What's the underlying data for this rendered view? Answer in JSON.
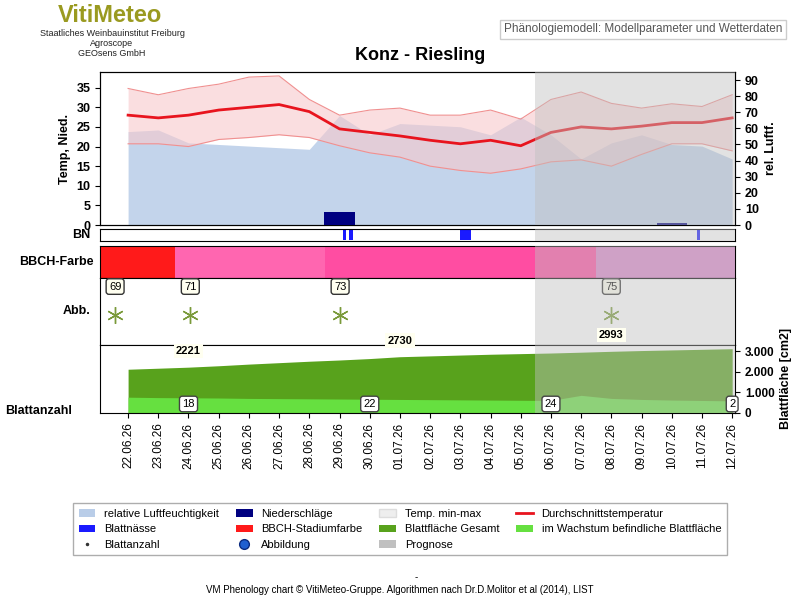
{
  "header": {
    "logo": "VitiMeteo",
    "lines": [
      "Staatliches Weinbauinstitut Freiburg",
      "Agroscope",
      "GEOsens GmbH"
    ],
    "model": "Phänologiemodell: Modellparameter und Wetterdaten"
  },
  "chart_data": {
    "type": "phenology",
    "title": "Konz - Riesling",
    "x": [
      "22.06.26",
      "23.06.26",
      "24.06.26",
      "25.06.26",
      "26.06.26",
      "27.06.26",
      "28.06.26",
      "29.06.26",
      "30.06.26",
      "01.07.26",
      "02.07.26",
      "03.07.26",
      "04.07.26",
      "05.07.26",
      "06.07.26",
      "07.07.26",
      "08.07.26",
      "09.07.26",
      "10.07.26",
      "11.07.26",
      "12.07.26"
    ],
    "xlim": [
      -0.93,
      20.1
    ],
    "legend": "lower center",
    "weather": {
      "ylabel": "Temp, Nied.",
      "y2label": "rel. Luftf.",
      "ylim": [
        0,
        39
      ],
      "yticks": [
        0,
        5,
        10,
        15,
        20,
        25,
        30,
        35
      ],
      "y2lim": [
        0,
        95
      ],
      "y2ticks": [
        0,
        10,
        20,
        30,
        40,
        50,
        60,
        70,
        80,
        90
      ],
      "series": [
        {
          "name": "relative Luftfeuchtigkeit",
          "type": "area",
          "axis": "y2",
          "color": "#b9cde8",
          "values": [
            58,
            59,
            51,
            50,
            49,
            48,
            47,
            68,
            56,
            63,
            62,
            61,
            56,
            67,
            56,
            41,
            51,
            56,
            50,
            49,
            41
          ]
        },
        {
          "name": "Niederschläge",
          "type": "bar",
          "color": "#000080",
          "values": [
            0,
            0,
            0,
            0,
            0,
            0,
            0,
            3.4,
            0,
            0,
            0,
            0,
            0,
            0,
            0,
            0,
            0,
            0,
            0.4,
            0,
            0
          ]
        },
        {
          "name": "Temp. min-max",
          "type": "band",
          "color": "#f7c9cc",
          "min": [
            20.7,
            20.7,
            20.0,
            21.8,
            22.3,
            23.0,
            22.3,
            20.2,
            18.4,
            17.3,
            15.0,
            13.9,
            13.2,
            14.3,
            16.1,
            16.6,
            15.0,
            18.0,
            20.7,
            20.7,
            18.9
          ],
          "max": [
            34.8,
            33.2,
            34.8,
            35.9,
            37.7,
            38.0,
            32.0,
            28.0,
            29.3,
            29.8,
            28.0,
            28.0,
            29.3,
            27.0,
            32.0,
            33.9,
            31.0,
            29.8,
            30.9,
            30.2,
            33.2
          ]
        },
        {
          "name": "Durchschnittstemperatur",
          "type": "line",
          "color": "#e8141e",
          "values": [
            28.0,
            27.3,
            28.0,
            29.3,
            30.0,
            30.7,
            28.9,
            24.5,
            23.6,
            22.7,
            21.6,
            20.7,
            21.6,
            20.2,
            23.6,
            25.0,
            24.5,
            25.2,
            26.1,
            26.1,
            27.3
          ]
        }
      ]
    },
    "leaf_wetness": {
      "name": "Blattnässe",
      "label": "BN",
      "color": "#1a1aff",
      "periods": [
        [
          7.1,
          7.22
        ],
        [
          7.3,
          7.45
        ],
        [
          11.0,
          11.35
        ],
        [
          18.85,
          18.95
        ]
      ]
    },
    "bbch": {
      "name": "BBCH-Stadiumfarbe",
      "label": "BBCH-Farbe",
      "stages": [
        {
          "stage": 69,
          "start": -0.93,
          "color": "#ff1a1a"
        },
        {
          "stage": 71,
          "start": 1.56,
          "color": "#ff66b0"
        },
        {
          "stage": 73,
          "start": 6.52,
          "color": "#ff4da2"
        },
        {
          "stage": 75,
          "start": 15.5,
          "color": "#dd88cc"
        }
      ]
    },
    "images": {
      "name": "Abbildung",
      "label": "Abb.",
      "color": "#1f5fd0"
    },
    "leaf_area": {
      "ylabel": "Blattfläche [cm2]",
      "ylim": [
        0,
        3300
      ],
      "yticks": [
        0,
        {
          "value": 1000,
          "label": "1.000"
        },
        {
          "value": 2000,
          "label": "2.000"
        },
        {
          "value": 3000,
          "label": "3.000"
        }
      ],
      "series": [
        {
          "name": "Blattfläche Gesamt",
          "color": "#58a21c",
          "values": [
            2120,
            2170,
            2221,
            2290,
            2370,
            2440,
            2510,
            2570,
            2640,
            2730,
            2770,
            2810,
            2850,
            2880,
            2910,
            2950,
            2993,
            3030,
            3060,
            3090,
            3120
          ],
          "value_labels": [
            null,
            null,
            "2221",
            null,
            null,
            null,
            null,
            null,
            null,
            "2730",
            null,
            null,
            null,
            null,
            null,
            null,
            "2993",
            null,
            null,
            null,
            null
          ]
        },
        {
          "name": "im Wachstum befindliche Blattfläche",
          "color": "#66e040",
          "values": [
            760,
            740,
            730,
            720,
            700,
            690,
            680,
            670,
            660,
            650,
            640,
            630,
            620,
            610,
            600,
            850,
            700,
            650,
            620,
            600,
            580
          ]
        }
      ]
    },
    "leaf_count": {
      "name": "Blattanzahl",
      "values": [
        null,
        null,
        18,
        null,
        null,
        null,
        null,
        null,
        22,
        null,
        null,
        null,
        null,
        null,
        24,
        null,
        null,
        null,
        null,
        null,
        2
      ]
    },
    "prognose": {
      "name": "Prognose",
      "color": "#c0c0c0",
      "start": 13.48
    }
  },
  "footer": [
    "-",
    "VM Phenology chart © VitiMeteo-Gruppe. Algorithmen nach Dr.D.Molitor et al (2014), LIST"
  ]
}
